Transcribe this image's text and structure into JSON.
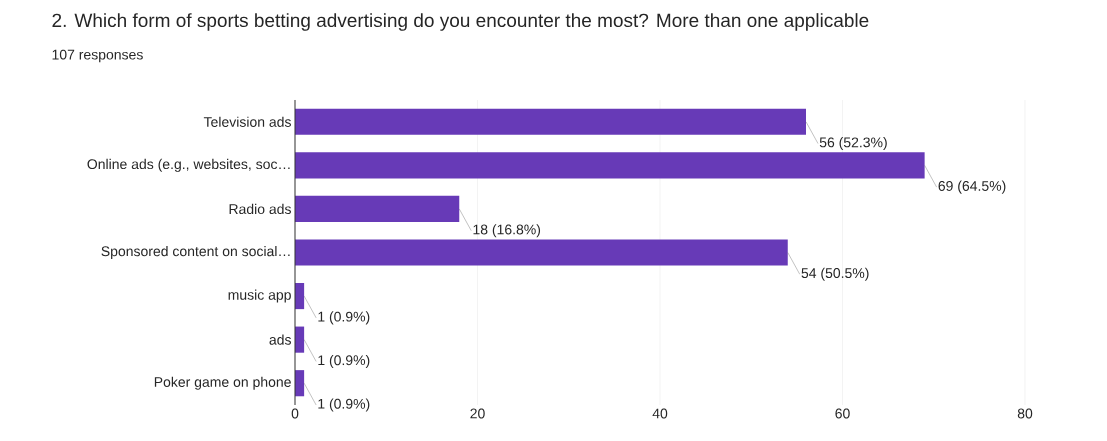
{
  "chart_data": {
    "type": "bar",
    "orientation": "horizontal",
    "title": "2. Which form of sports betting advertising do you encounter the most? More than one applicable",
    "subtitle": "107 responses",
    "categories": [
      "Television ads",
      "Online ads (e.g., websites, soc…",
      "Radio ads",
      "Sponsored content on social…",
      "music app",
      "ads",
      "Poker game on phone"
    ],
    "values": [
      56,
      69,
      18,
      54,
      1,
      1,
      1
    ],
    "value_labels": [
      "56 (52.3%)",
      "69 (64.5%)",
      "18 (16.8%)",
      "54 (50.5%)",
      "1 (0.9%)",
      "1 (0.9%)",
      "1 (0.9%)"
    ],
    "color": "#673ab7",
    "xlim": [
      0,
      80
    ],
    "xticks": [
      0,
      20,
      40,
      60,
      80
    ],
    "grid": "x"
  }
}
